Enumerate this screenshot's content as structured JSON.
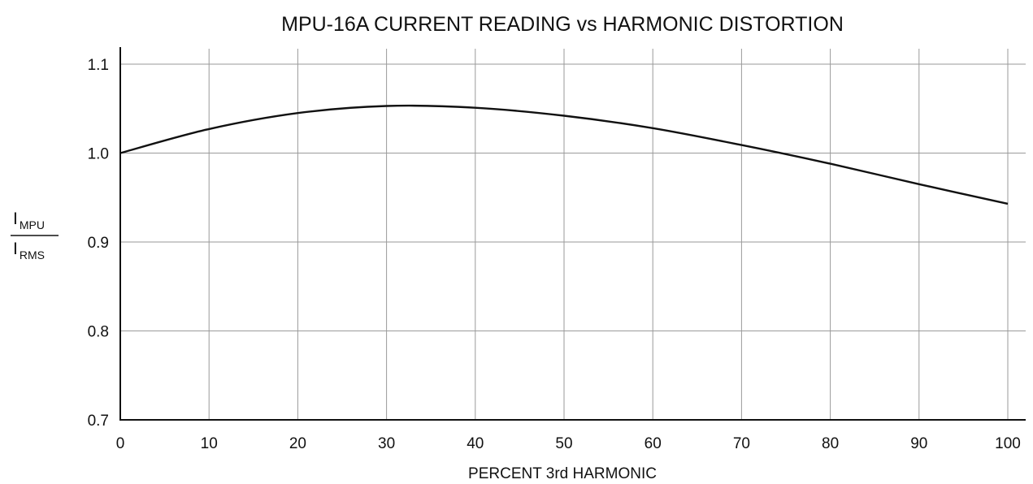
{
  "chart_data": {
    "type": "line",
    "title": "MPU-16A CURRENT READING vs HARMONIC DISTORTION",
    "xlabel": "PERCENT 3rd HARMONIC",
    "ylabel": {
      "numerator_main": "I",
      "numerator_sub": "MPU",
      "denominator_main": "I",
      "denominator_sub": "RMS"
    },
    "xlim": [
      0,
      100
    ],
    "ylim": [
      0.7,
      1.1
    ],
    "x_ticks": [
      0,
      10,
      20,
      30,
      40,
      50,
      60,
      70,
      80,
      90,
      100
    ],
    "y_ticks": [
      0.7,
      0.8,
      0.9,
      1.0,
      1.1
    ],
    "y_tick_labels": [
      "0.7",
      "0.8",
      "0.9",
      "1.0",
      "1.1"
    ],
    "grid": true,
    "series": [
      {
        "x": [
          0,
          10,
          20,
          30,
          40,
          50,
          60,
          70,
          80,
          90,
          100
        ],
        "y": [
          1.0,
          1.027,
          1.045,
          1.053,
          1.051,
          1.042,
          1.028,
          1.009,
          0.988,
          0.965,
          0.943
        ]
      }
    ]
  }
}
